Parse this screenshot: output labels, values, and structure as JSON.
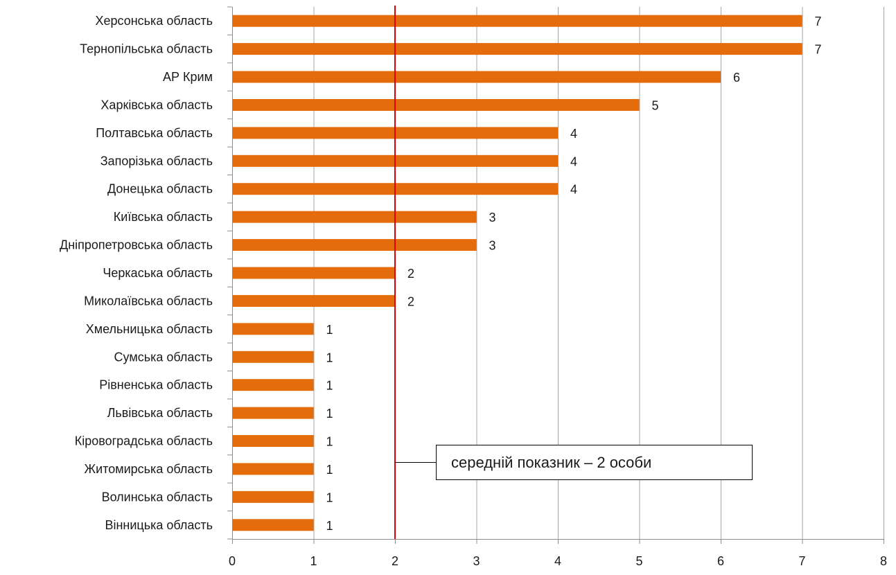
{
  "chart_data": {
    "type": "bar",
    "orientation": "horizontal",
    "categories": [
      "Херсонська область",
      "Тернопільська область",
      "АР Крим",
      "Харківська область",
      "Полтавська область",
      "Запорізька область",
      "Донецька область",
      "Київська область",
      "Дніпропетровська область",
      "Черкаська область",
      "Миколаївська область",
      "Хмельницька область",
      "Сумська область",
      "Рівненська область",
      "Львівська область",
      "Кіровоградська область",
      "Житомирська область",
      "Волинська область",
      "Вінницька область"
    ],
    "values": [
      7,
      7,
      6,
      5,
      4,
      4,
      4,
      3,
      3,
      2,
      2,
      1,
      1,
      1,
      1,
      1,
      1,
      1,
      1
    ],
    "xlim": [
      0,
      8
    ],
    "xticks": [
      "0",
      "1",
      "2",
      "3",
      "4",
      "5",
      "6",
      "7",
      "8"
    ],
    "grid": true,
    "colors": {
      "bar": "#e46c0a",
      "reference_line": "#e00000",
      "grid": "#a6a6a6"
    },
    "reference_line": {
      "value": 2,
      "label": "середній показник – 2 особи"
    }
  }
}
